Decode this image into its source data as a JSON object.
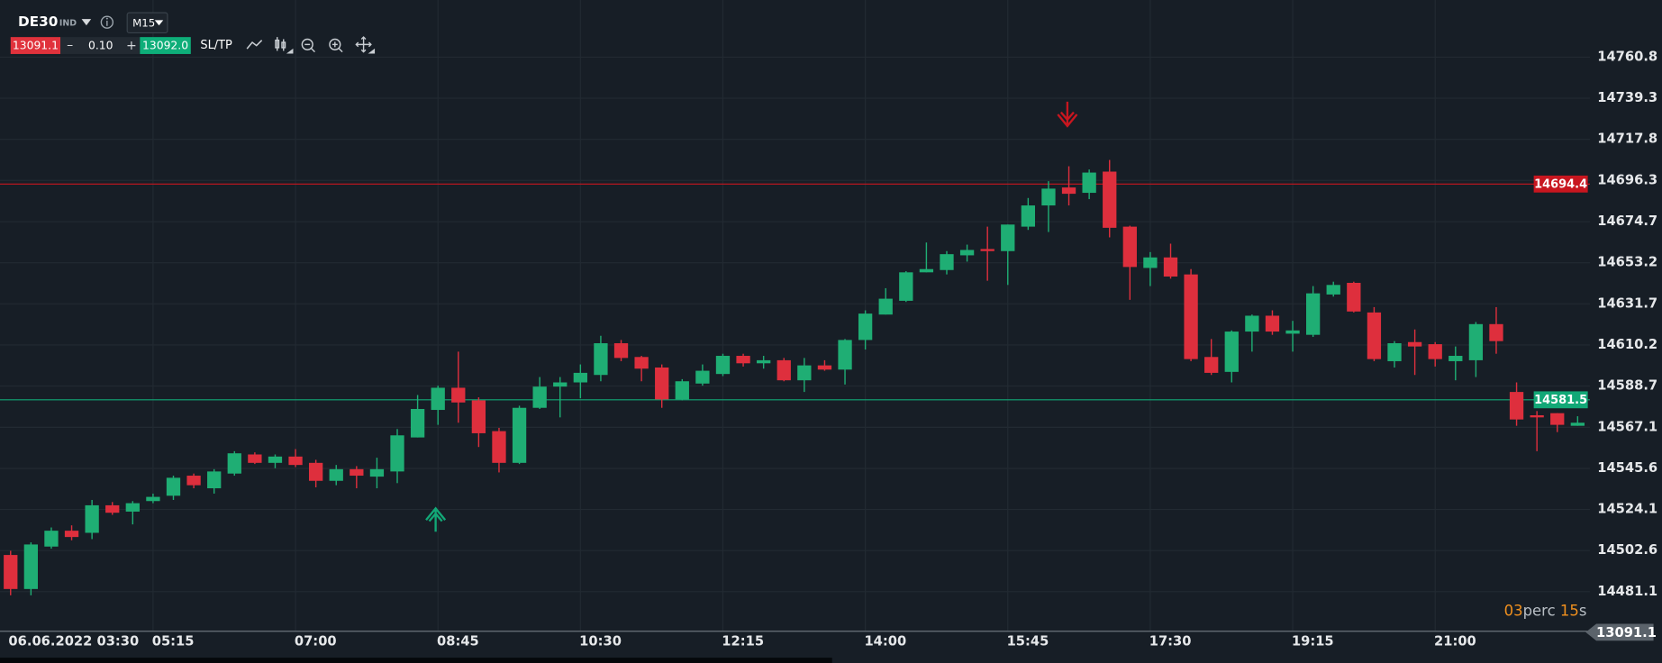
{
  "toolbar": {
    "symbol": "DE30",
    "symbol_type": "IND",
    "timeframe": "M15",
    "sell_price": "13091.1",
    "volume": "0.10",
    "buy_price": "13092.0",
    "sltp": "SL/TP"
  },
  "timer": {
    "minutes": "03",
    "minutes_unit": "perc",
    "seconds": "15",
    "seconds_unit": "s"
  },
  "axis_price_label": "13091.1",
  "chart_data": {
    "type": "candlestick",
    "categories": [
      "06.06.2022 03:30",
      null,
      null,
      null,
      null,
      null,
      null,
      "05:15",
      null,
      null,
      null,
      null,
      null,
      null,
      "07:00",
      null,
      null,
      null,
      null,
      null,
      null,
      "08:45",
      null,
      null,
      null,
      null,
      null,
      null,
      "10:30",
      null,
      null,
      null,
      null,
      null,
      null,
      "12:15",
      null,
      null,
      null,
      null,
      null,
      null,
      "14:00",
      null,
      null,
      null,
      null,
      null,
      null,
      "15:45",
      null,
      null,
      null,
      null,
      null,
      null,
      "17:30",
      null,
      null,
      null,
      null,
      null,
      null,
      "19:15",
      null,
      null,
      null,
      null,
      null,
      null,
      "21:00",
      null,
      null,
      null,
      null,
      null,
      null,
      null
    ],
    "open": [
      14500.3,
      14482.5,
      14504.7,
      14513.0,
      14511.9,
      14526.3,
      14523.0,
      14528.5,
      14531.3,
      14541.8,
      14535.2,
      14542.9,
      14552.9,
      14548.5,
      14551.8,
      14548.5,
      14539.1,
      14545.2,
      14541.3,
      14544.0,
      14561.8,
      14576.2,
      14587.8,
      14581.2,
      14565.1,
      14548.5,
      14577.3,
      14588.4,
      14590.6,
      14594.5,
      14611.1,
      14603.9,
      14598.4,
      14581.7,
      14590.0,
      14595.0,
      14604.5,
      14600.6,
      14602.2,
      14591.7,
      14599.5,
      14597.3,
      14612.8,
      14626.1,
      14633.3,
      14648.2,
      14649.4,
      14657.1,
      14660.4,
      14659.3,
      14672.1,
      14683.2,
      14692.6,
      14689.8,
      14700.9,
      14672.1,
      14650.5,
      14656.0,
      14647.1,
      14603.9,
      14596.1,
      14617.2,
      14625.5,
      14616.1,
      14615.5,
      14636.6,
      14642.7,
      14627.2,
      14601.7,
      14611.7,
      14610.6,
      14601.7,
      14602.2,
      14621.1,
      14585.6,
      14573.4,
      14574.5,
      14567.9
    ],
    "high": [
      14502.5,
      14506.9,
      14514.7,
      14515.8,
      14529.1,
      14528.0,
      14528.5,
      14532.4,
      14541.8,
      14542.9,
      14545.2,
      14554.6,
      14554.0,
      14552.9,
      14555.7,
      14550.1,
      14547.4,
      14546.8,
      14551.2,
      14566.2,
      14584.0,
      14588.9,
      14606.7,
      14582.8,
      14566.8,
      14578.4,
      14593.4,
      14593.4,
      14600.0,
      14615.0,
      14612.8,
      14604.5,
      14600.0,
      14592.3,
      14600.0,
      14605.6,
      14605.6,
      14604.5,
      14603.4,
      14603.4,
      14602.2,
      14613.3,
      14628.3,
      14639.9,
      14648.8,
      14663.8,
      14659.3,
      14662.7,
      14672.1,
      14673.2,
      14687.1,
      14695.9,
      14703.7,
      14702.0,
      14707.0,
      14672.6,
      14658.8,
      14663.2,
      14649.9,
      14613.3,
      14617.8,
      14626.1,
      14628.3,
      14622.8,
      14641.0,
      14643.3,
      14643.3,
      14630.0,
      14612.2,
      14618.3,
      14611.7,
      14609.4,
      14622.2,
      14630.0,
      14590.6,
      14575.6,
      14574.5,
      14572.9
    ],
    "low": [
      14479.2,
      14479.2,
      14503.6,
      14508.0,
      14508.6,
      14521.3,
      14516.3,
      14527.4,
      14529.1,
      14535.2,
      14532.4,
      14541.8,
      14547.9,
      14545.7,
      14546.3,
      14535.7,
      14536.8,
      14535.2,
      14535.2,
      14537.9,
      14561.8,
      14568.4,
      14569.5,
      14556.8,
      14543.5,
      14547.9,
      14576.7,
      14572.3,
      14582.3,
      14591.2,
      14601.7,
      14591.2,
      14577.3,
      14581.2,
      14588.9,
      14593.9,
      14598.9,
      14597.8,
      14591.2,
      14585.6,
      14596.7,
      14589.5,
      14607.8,
      14626.1,
      14632.7,
      14648.2,
      14647.1,
      14653.8,
      14643.8,
      14641.6,
      14670.4,
      14669.3,
      14683.2,
      14686.5,
      14666.5,
      14633.8,
      14641.0,
      14644.9,
      14601.7,
      14594.5,
      14590.6,
      14606.7,
      14615.5,
      14606.7,
      14614.4,
      14635.5,
      14627.2,
      14601.7,
      14598.4,
      14594.5,
      14598.9,
      14591.7,
      14593.4,
      14605.6,
      14567.9,
      14554.6,
      14564.6,
      14567.9
    ],
    "close": [
      14482.5,
      14505.8,
      14513.0,
      14509.7,
      14526.3,
      14522.4,
      14527.4,
      14530.7,
      14540.7,
      14536.8,
      14544.0,
      14553.5,
      14548.5,
      14551.8,
      14547.4,
      14539.1,
      14545.2,
      14541.8,
      14545.2,
      14562.9,
      14576.7,
      14587.8,
      14580.1,
      14564.0,
      14548.5,
      14577.3,
      14588.4,
      14590.6,
      14595.6,
      14611.1,
      14603.4,
      14597.8,
      14581.7,
      14591.2,
      14596.7,
      14604.5,
      14600.6,
      14602.2,
      14591.7,
      14599.5,
      14597.3,
      14612.8,
      14626.6,
      14634.4,
      14648.2,
      14649.9,
      14657.7,
      14659.9,
      14659.3,
      14673.2,
      14683.2,
      14692.0,
      14689.3,
      14700.4,
      14671.5,
      14651.0,
      14656.0,
      14646.0,
      14602.8,
      14595.6,
      14617.2,
      14625.5,
      14617.2,
      14617.8,
      14637.2,
      14641.6,
      14627.7,
      14602.8,
      14611.1,
      14609.4,
      14602.8,
      14604.5,
      14621.1,
      14612.2,
      14571.2,
      14572.3,
      14568.4,
      14569.5
    ],
    "up_color": "#1fae74",
    "down_color": "#de2f3d",
    "ylim": [
      14460.4,
      14790.7
    ],
    "yticks": [
      14481.1,
      14502.6,
      14524.1,
      14545.6,
      14567.1,
      14588.7,
      14610.2,
      14631.7,
      14653.2,
      14674.7,
      14696.3,
      14717.8,
      14739.3,
      14760.8
    ],
    "grid": true,
    "price_lines": [
      {
        "value": 14694.4,
        "color": "#c8161f"
      },
      {
        "value": 14581.5,
        "color": "#12a877"
      }
    ]
  }
}
